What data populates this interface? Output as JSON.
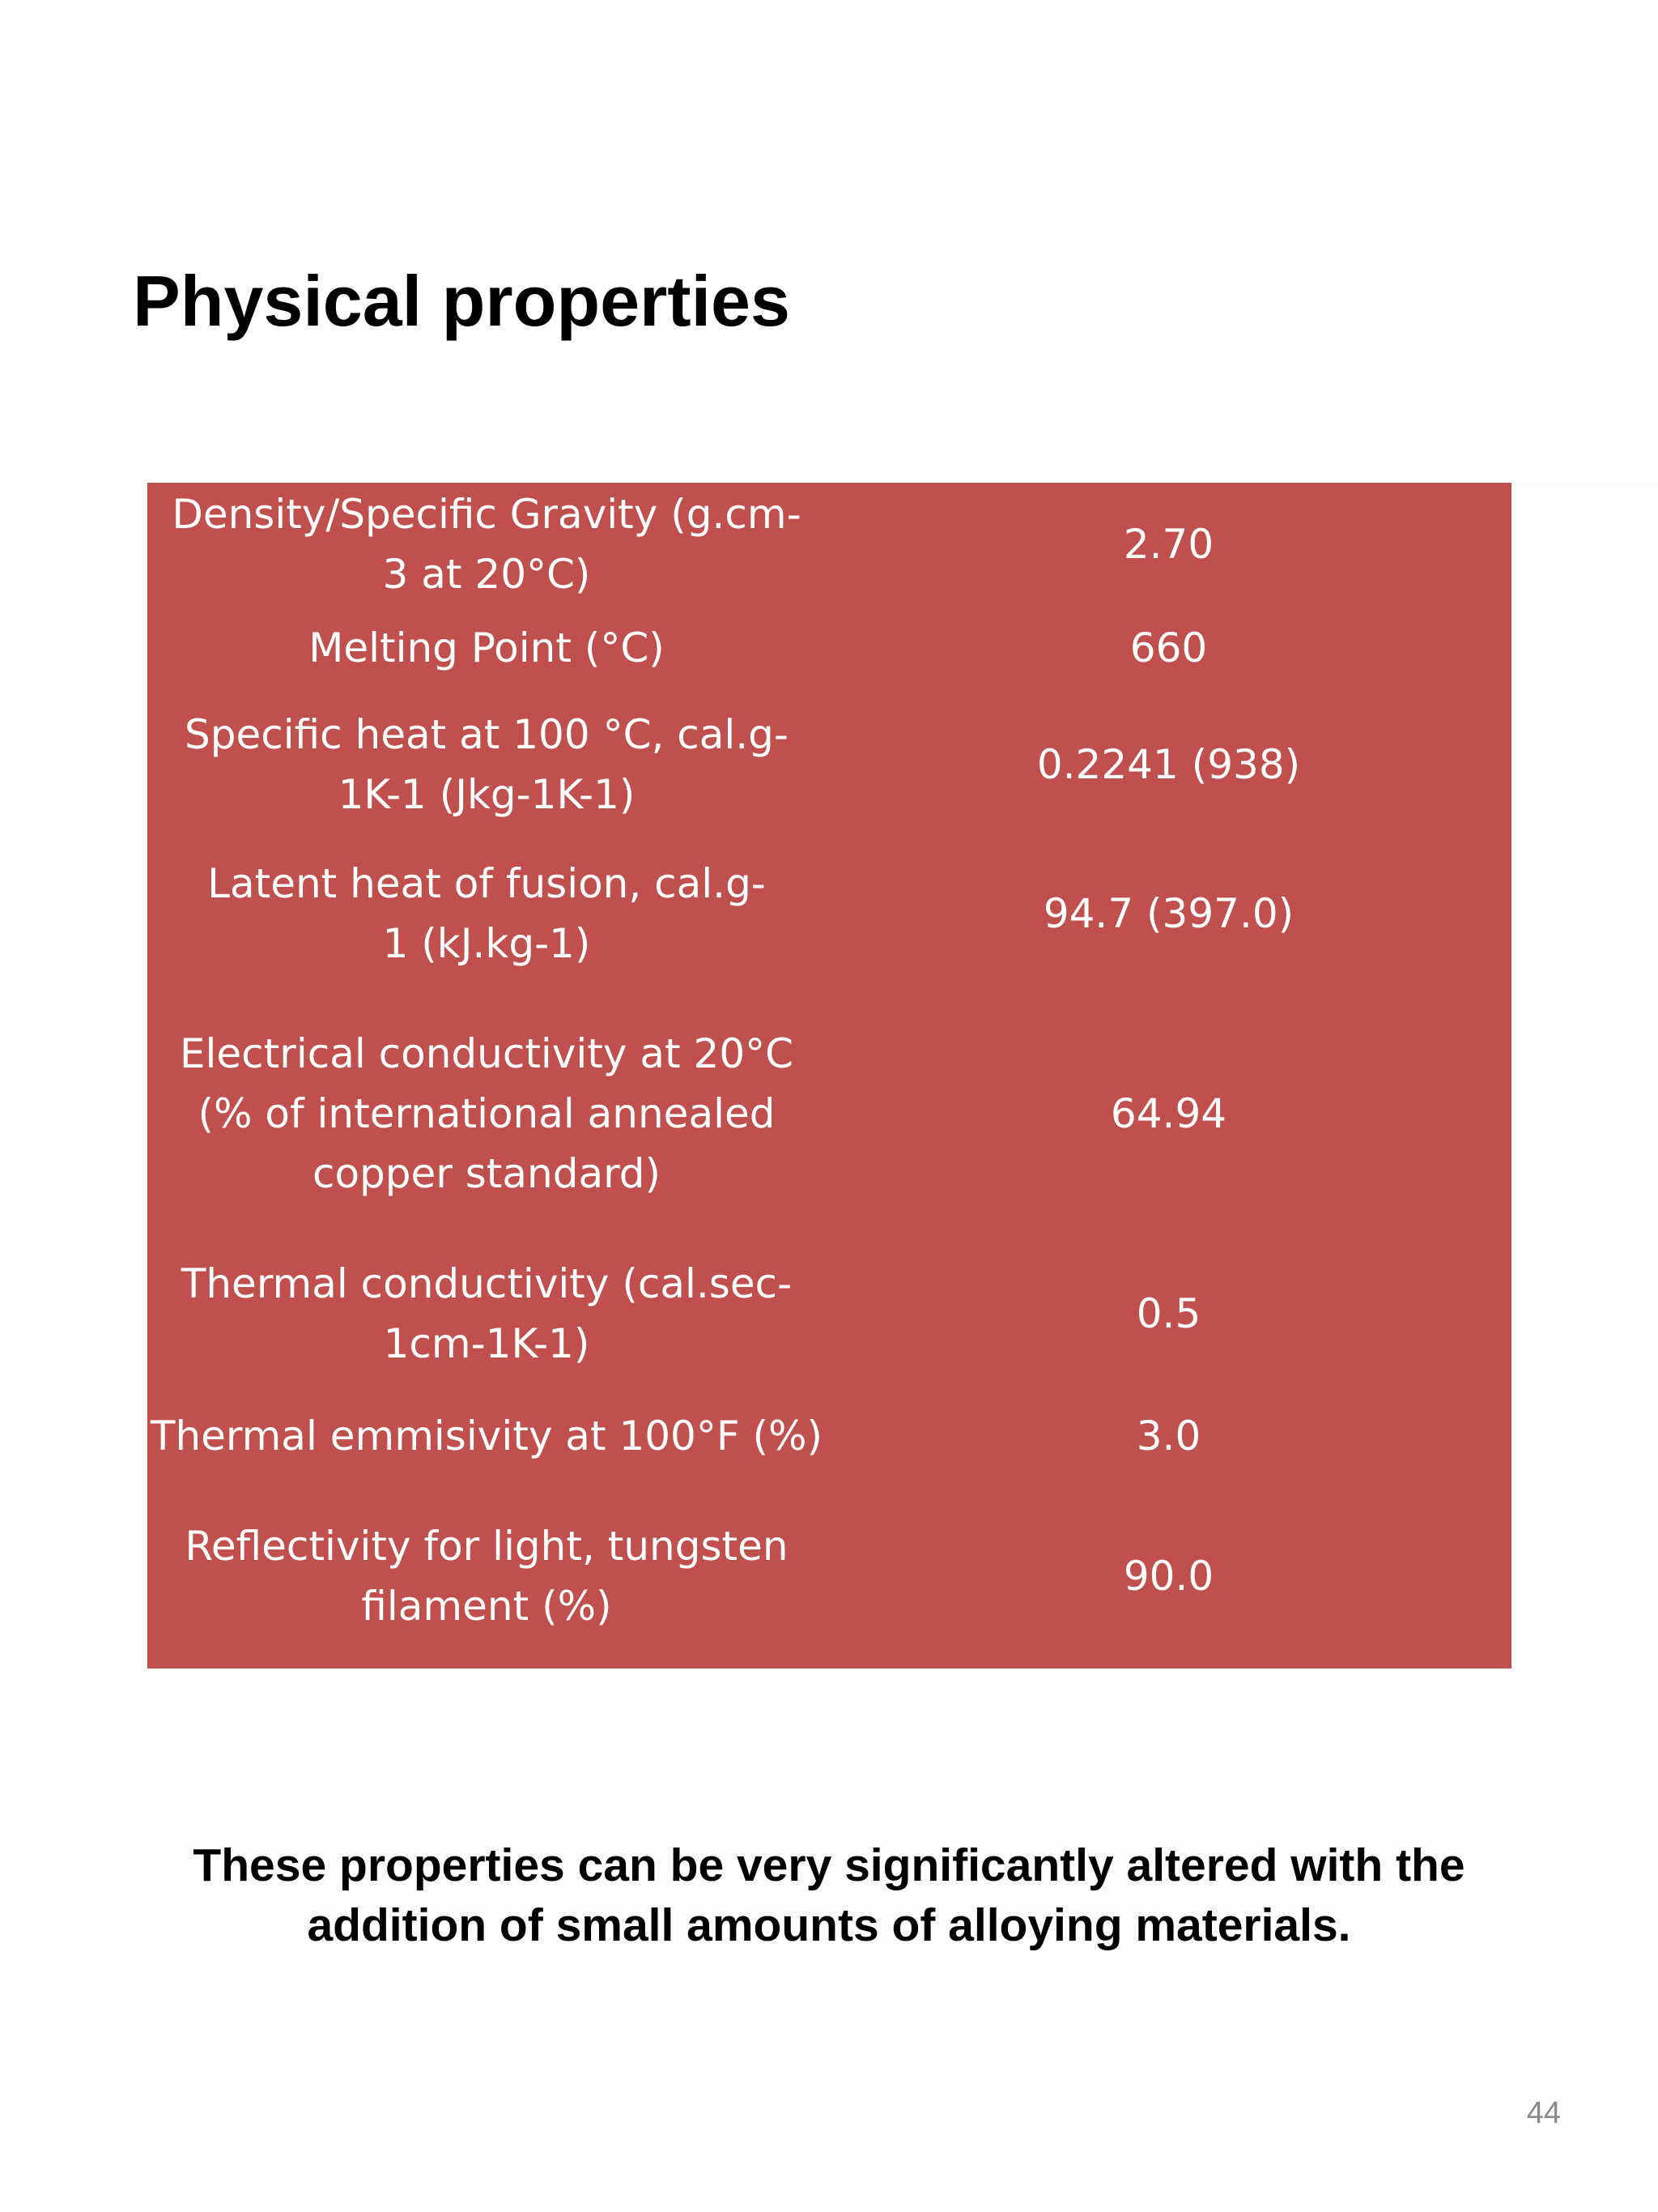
{
  "slide": {
    "title": "Physical properties",
    "table": {
      "rows": [
        {
          "property": "Density/Specific Gravity (g.cm-3 at 20°C)",
          "value": "2.70"
        },
        {
          "property": "Melting Point (°C)",
          "value": "660"
        },
        {
          "property": "Specific heat at 100 °C, cal.g-1K-1 (Jkg-1K-1)",
          "value": "0.2241 (938)"
        },
        {
          "property": "Latent heat of fusion, cal.g-1 (kJ.kg-1)",
          "value": "94.7 (397.0)"
        },
        {
          "property": "Electrical conductivity at 20°C (% of international annealed copper standard)",
          "value": "64.94"
        },
        {
          "property": "Thermal conductivity (cal.sec-1cm-1K-1)",
          "value": "0.5"
        },
        {
          "property": "Thermal emmisivity at 100°F (%)",
          "value": "3.0"
        },
        {
          "property": "Reflectivity for light, tungsten filament (%)",
          "value": "90.0"
        }
      ]
    },
    "footnote": "These properties can be very significantly altered with the addition of small amounts of alloying materials.",
    "page_number": "44"
  },
  "colors": {
    "table_background": "#c0504d",
    "table_text": "#ffffff",
    "title_text": "#000000",
    "page_number_text": "#8a8a8a"
  }
}
